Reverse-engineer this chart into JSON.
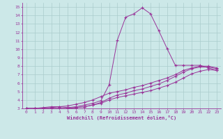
{
  "xlabel": "Windchill (Refroidissement éolien,°C)",
  "background_color": "#cce8e8",
  "line_color": "#993399",
  "grid_color": "#aacccc",
  "xlim": [
    -0.5,
    23.5
  ],
  "ylim": [
    3,
    15.5
  ],
  "x_ticks": [
    0,
    1,
    2,
    3,
    4,
    5,
    6,
    7,
    8,
    9,
    10,
    11,
    12,
    13,
    14,
    15,
    16,
    17,
    18,
    19,
    20,
    21,
    22,
    23
  ],
  "y_ticks": [
    3,
    4,
    5,
    6,
    7,
    8,
    9,
    10,
    11,
    12,
    13,
    14,
    15
  ],
  "line1_x": [
    0,
    1,
    2,
    3,
    4,
    5,
    6,
    7,
    8,
    9,
    10,
    11,
    12,
    13,
    14,
    15,
    16,
    17,
    18,
    19,
    20,
    21,
    22,
    23
  ],
  "line1_y": [
    3.0,
    3.0,
    3.1,
    3.2,
    3.2,
    3.1,
    3.2,
    3.4,
    3.6,
    3.9,
    5.8,
    11.1,
    13.8,
    14.2,
    14.9,
    14.2,
    12.2,
    10.1,
    8.1,
    8.1,
    8.1,
    8.1,
    7.8,
    7.5
  ],
  "line2_x": [
    0,
    1,
    2,
    3,
    4,
    5,
    6,
    7,
    8,
    9,
    10,
    11,
    12,
    13,
    14,
    15,
    16,
    17,
    18,
    19,
    20,
    21,
    22,
    23
  ],
  "line2_y": [
    3.0,
    3.0,
    3.0,
    3.0,
    3.0,
    3.0,
    3.1,
    3.2,
    3.4,
    3.6,
    4.0,
    4.3,
    4.5,
    4.7,
    4.9,
    5.1,
    5.4,
    5.7,
    6.1,
    6.6,
    7.1,
    7.4,
    7.6,
    7.5
  ],
  "line3_x": [
    0,
    1,
    2,
    3,
    4,
    5,
    6,
    7,
    8,
    9,
    10,
    11,
    12,
    13,
    14,
    15,
    16,
    17,
    18,
    19,
    20,
    21,
    22,
    23
  ],
  "line3_y": [
    3.0,
    3.0,
    3.0,
    3.1,
    3.2,
    3.3,
    3.5,
    3.7,
    4.0,
    4.4,
    4.8,
    5.0,
    5.2,
    5.5,
    5.7,
    6.0,
    6.3,
    6.6,
    7.0,
    7.5,
    7.8,
    8.0,
    8.0,
    7.8
  ],
  "line4_x": [
    0,
    1,
    2,
    3,
    4,
    5,
    6,
    7,
    8,
    9,
    10,
    11,
    12,
    13,
    14,
    15,
    16,
    17,
    18,
    19,
    20,
    21,
    22,
    23
  ],
  "line4_y": [
    3.0,
    3.0,
    3.0,
    3.0,
    3.0,
    3.0,
    3.1,
    3.2,
    3.4,
    3.7,
    4.2,
    4.6,
    4.8,
    5.1,
    5.3,
    5.6,
    5.9,
    6.3,
    6.8,
    7.3,
    7.7,
    7.9,
    7.9,
    7.7
  ]
}
